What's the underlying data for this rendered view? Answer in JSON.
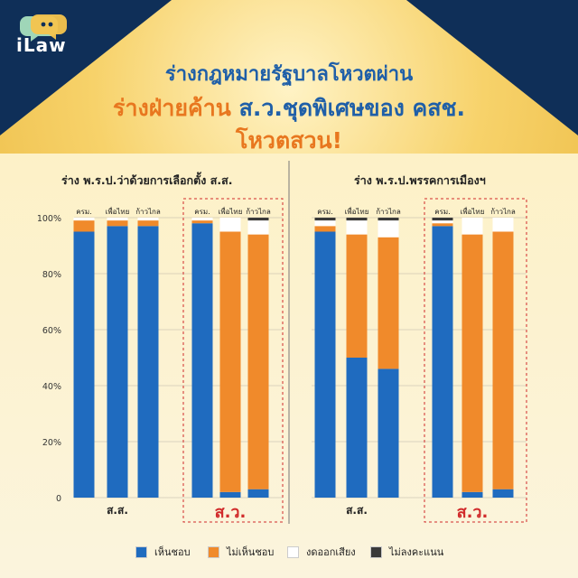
{
  "brand": {
    "logo_text": "iLaw",
    "colors": {
      "bg_dark": "#0f2f58",
      "spot": "#f6c44d",
      "blue": "#1f6bbf",
      "orange": "#f08a2b",
      "white": "#ffffff",
      "dark": "#3a3a3a"
    }
  },
  "headline": {
    "line1": "ร่างกฎหมายรัฐบาลโหวตผ่าน",
    "line2_orange": "ร่างฝ่ายค้าน",
    "line2_blue": "ส.ว.ชุดพิเศษของ คสช.",
    "line3": "โหวตสวน!"
  },
  "chart_data": [
    {
      "type": "bar",
      "stacked": true,
      "title": "ร่าง พ.ร.ป.ว่าด้วยการเลือกตั้ง ส.ส.",
      "categories": [
        "ครม.",
        "เพื่อไทย",
        "ก้าวไกล",
        "ครม.",
        "เพื่อไทย",
        "ก้าวไกล"
      ],
      "groups": [
        {
          "label": "ส.ส.",
          "highlight": false,
          "category_indexes": [
            0,
            1,
            2
          ]
        },
        {
          "label": "ส.ว.",
          "highlight": true,
          "category_indexes": [
            3,
            4,
            5
          ]
        }
      ],
      "series": [
        {
          "name": "เห็นชอบ",
          "values": [
            95,
            97,
            97,
            98,
            2,
            3
          ]
        },
        {
          "name": "ไม่เห็นชอบ",
          "values": [
            4,
            2,
            2,
            1,
            93,
            91
          ]
        },
        {
          "name": "งดออกเสียง",
          "values": [
            1,
            1,
            1,
            1,
            5,
            5
          ]
        },
        {
          "name": "ไม่ลงคะแนน",
          "values": [
            0,
            0,
            0,
            0,
            0,
            1
          ]
        }
      ],
      "yticks": [
        "0",
        "20%",
        "40%",
        "60%",
        "80%",
        "100%"
      ],
      "ylim": [
        0,
        100
      ]
    },
    {
      "type": "bar",
      "stacked": true,
      "title": "ร่าง พ.ร.ป.พรรคการเมืองฯ",
      "categories": [
        "ครม.",
        "เพื่อไทย",
        "ก้าวไกล",
        "ครม.",
        "เพื่อไทย",
        "ก้าวไกล"
      ],
      "groups": [
        {
          "label": "ส.ส.",
          "highlight": false,
          "category_indexes": [
            0,
            1,
            2
          ]
        },
        {
          "label": "ส.ว.",
          "highlight": true,
          "category_indexes": [
            3,
            4,
            5
          ]
        }
      ],
      "series": [
        {
          "name": "เห็นชอบ",
          "values": [
            95,
            50,
            46,
            97,
            2,
            3
          ]
        },
        {
          "name": "ไม่เห็นชอบ",
          "values": [
            2,
            44,
            47,
            1,
            92,
            92
          ]
        },
        {
          "name": "งดออกเสียง",
          "values": [
            2,
            5,
            6,
            1,
            6,
            5
          ]
        },
        {
          "name": "ไม่ลงคะแนน",
          "values": [
            1,
            1,
            1,
            1,
            0,
            0
          ]
        }
      ],
      "ylim": [
        0,
        100
      ]
    }
  ],
  "legend": [
    {
      "label": "เห็นชอบ",
      "color": "#1f6bbf"
    },
    {
      "label": "ไม่เห็นชอบ",
      "color": "#f08a2b"
    },
    {
      "label": "งดออกเสียง",
      "color": "#ffffff"
    },
    {
      "label": "ไม่ลงคะแนน",
      "color": "#3a3a3a"
    }
  ]
}
